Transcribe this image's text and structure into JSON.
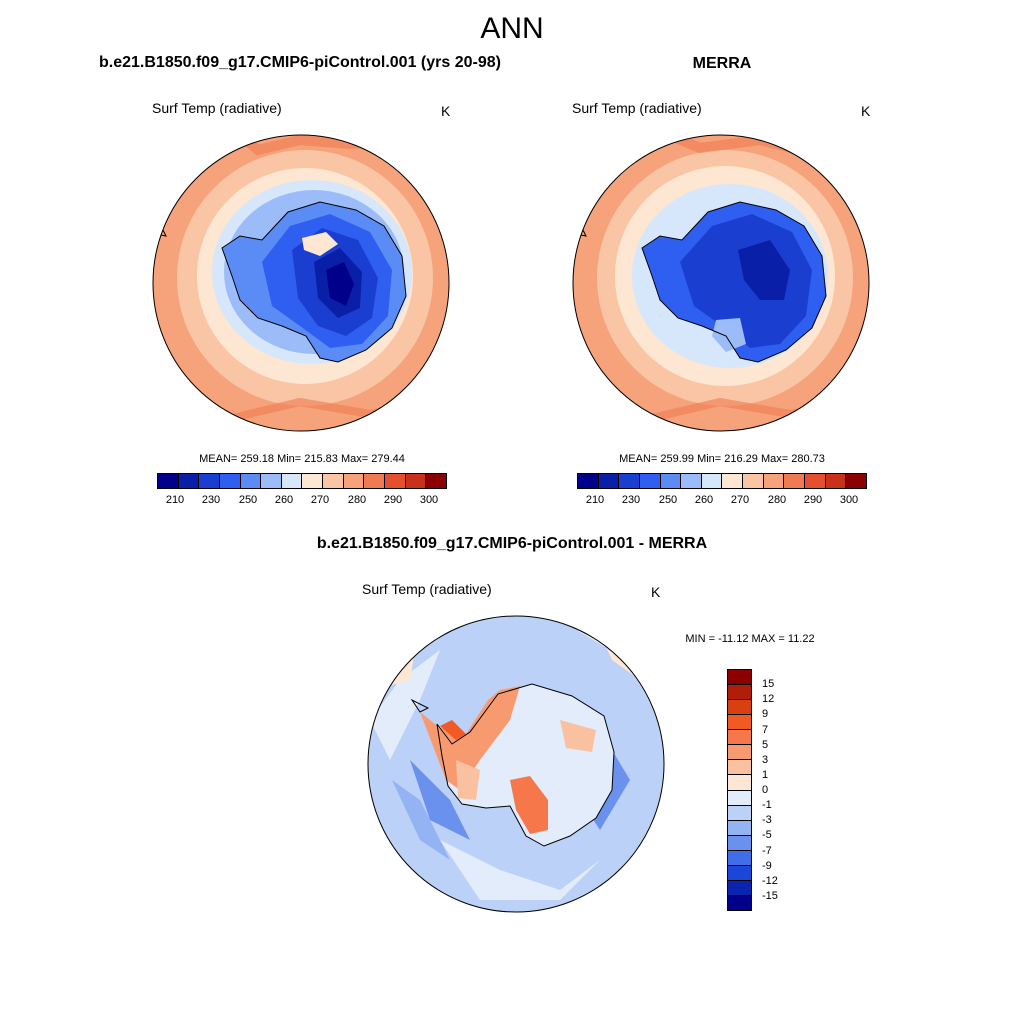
{
  "figure": {
    "title": "ANN"
  },
  "panels": [
    {
      "title": "b.e21.B1850.f09_g17.CMIP6-piControl.001 (yrs 20-98)",
      "variable": "Surf Temp (radiative)",
      "units": "K",
      "stats": "MEAN= 259.18  Min= 215.83  Max= 279.44",
      "colorbar_labels": [
        "210",
        "230",
        "250",
        "260",
        "270",
        "280",
        "290",
        "300"
      ]
    },
    {
      "title": "MERRA",
      "variable": "Surf Temp (radiative)",
      "units": "K",
      "stats": "MEAN= 259.99  Min= 216.29  Max= 280.73",
      "colorbar_labels": [
        "210",
        "230",
        "250",
        "260",
        "270",
        "280",
        "290",
        "300"
      ]
    },
    {
      "title": "b.e21.B1850.f09_g17.CMIP6-piControl.001 - MERRA",
      "variable": "Surf Temp (radiative)",
      "units": "K",
      "stats": "MIN = -11.12 MAX =  11.22",
      "colorbar_labels": [
        "15",
        "12",
        "9",
        "7",
        "5",
        "3",
        "1",
        "0",
        "-1",
        "-3",
        "-5",
        "-7",
        "-9",
        "-12",
        "-15"
      ]
    }
  ],
  "colors": {
    "abs_scale": [
      "#00008b",
      "#0a1fa8",
      "#1a3fd0",
      "#2f5ff0",
      "#5b8cf5",
      "#9bbcf8",
      "#d6e6fb",
      "#fde6d2",
      "#fac5a4",
      "#f6a27a",
      "#f07a52",
      "#e4502f",
      "#c8311a",
      "#8b0000"
    ],
    "diff_scale": [
      "#8b0000",
      "#b01e0a",
      "#d8400f",
      "#f25a24",
      "#f6774a",
      "#f79a70",
      "#f9c1a0",
      "#fde6d3",
      "#e3ecfb",
      "#bcd1f7",
      "#93b3f2",
      "#6a91ee",
      "#3f6ee8",
      "#1b47d8",
      "#0a24b0",
      "#00008b"
    ]
  }
}
